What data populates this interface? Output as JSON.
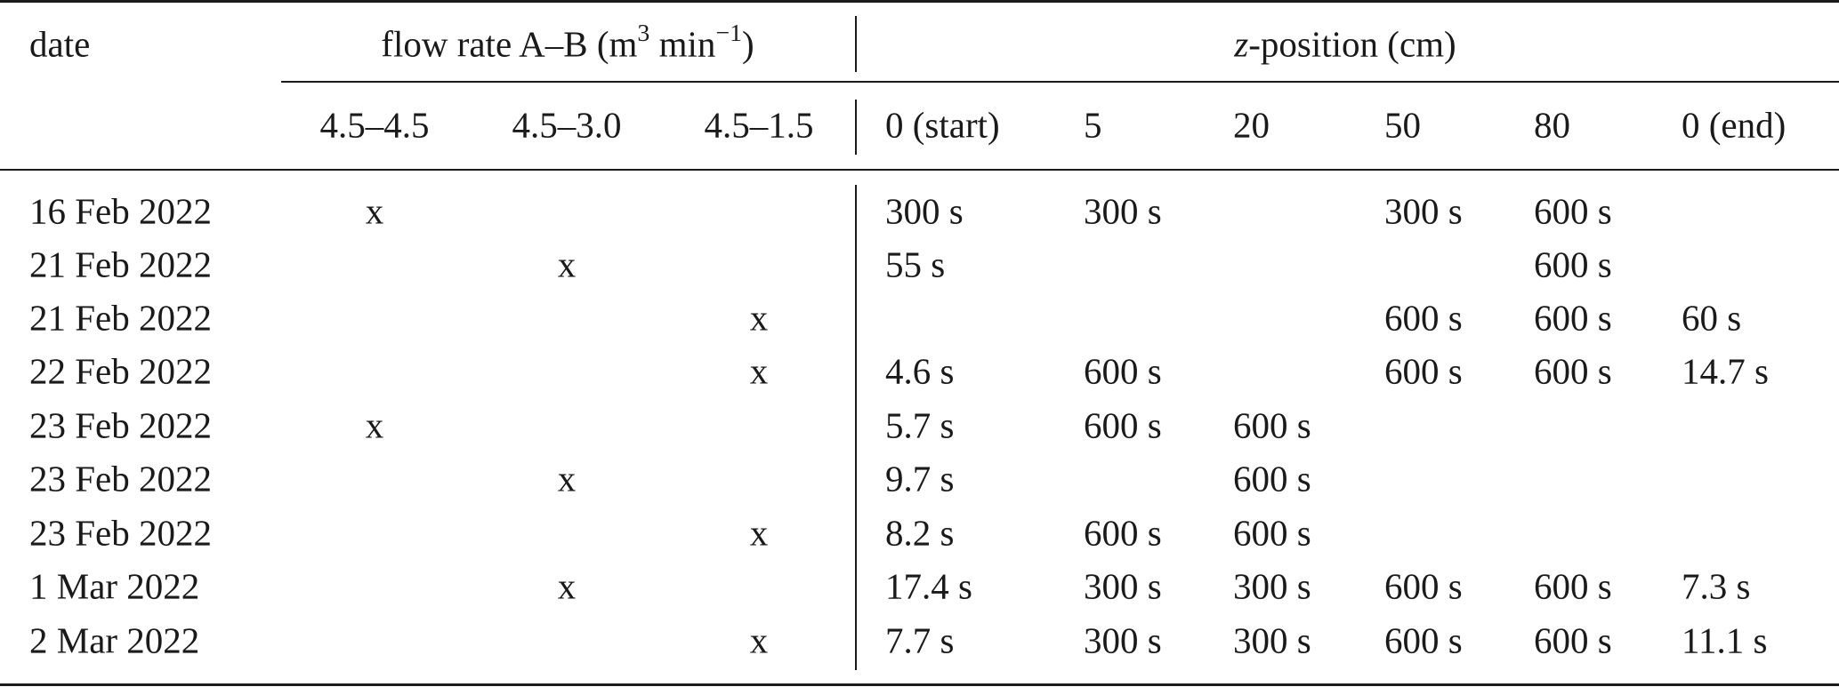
{
  "header": {
    "date_label": "date",
    "flow_group": {
      "prefix": "flow rate A–B (m",
      "sup1": "3",
      "middle": " min",
      "sup2": "−1",
      "suffix": ")"
    },
    "z_group": {
      "italic": "z",
      "rest": "-position (cm)"
    },
    "flow_columns": [
      "4.5–4.5",
      "4.5–3.0",
      "4.5–1.5"
    ],
    "z_columns": [
      "0 (start)",
      "5",
      "20",
      "50",
      "80",
      "0 (end)"
    ]
  },
  "rows": [
    {
      "date": "16 Feb 2022",
      "flow": [
        "x",
        "",
        ""
      ],
      "z": [
        "300 s",
        "300 s",
        "",
        "300 s",
        "600 s",
        ""
      ]
    },
    {
      "date": "21 Feb 2022",
      "flow": [
        "",
        "x",
        ""
      ],
      "z": [
        "55 s",
        "",
        "",
        "",
        "600 s",
        ""
      ]
    },
    {
      "date": "21 Feb 2022",
      "flow": [
        "",
        "",
        "x"
      ],
      "z": [
        "",
        "",
        "",
        "600 s",
        "600 s",
        "60 s"
      ]
    },
    {
      "date": "22 Feb 2022",
      "flow": [
        "",
        "",
        "x"
      ],
      "z": [
        "4.6 s",
        "600 s",
        "",
        "600 s",
        "600 s",
        "14.7 s"
      ]
    },
    {
      "date": "23 Feb 2022",
      "flow": [
        "x",
        "",
        ""
      ],
      "z": [
        "5.7 s",
        "600 s",
        "600 s",
        "",
        "",
        ""
      ]
    },
    {
      "date": "23 Feb 2022",
      "flow": [
        "",
        "x",
        ""
      ],
      "z": [
        "9.7 s",
        "",
        "600 s",
        "",
        "",
        ""
      ]
    },
    {
      "date": "23 Feb 2022",
      "flow": [
        "",
        "",
        "x"
      ],
      "z": [
        "8.2 s",
        "600 s",
        "600 s",
        "",
        "",
        ""
      ]
    },
    {
      "date": "1 Mar 2022",
      "flow": [
        "",
        "x",
        ""
      ],
      "z": [
        "17.4 s",
        "300 s",
        "300 s",
        "600 s",
        "600 s",
        "7.3 s"
      ]
    },
    {
      "date": "2 Mar 2022",
      "flow": [
        "",
        "",
        "x"
      ],
      "z": [
        "7.7 s",
        "300 s",
        "300 s",
        "600 s",
        "600 s",
        "11.1 s"
      ]
    }
  ]
}
